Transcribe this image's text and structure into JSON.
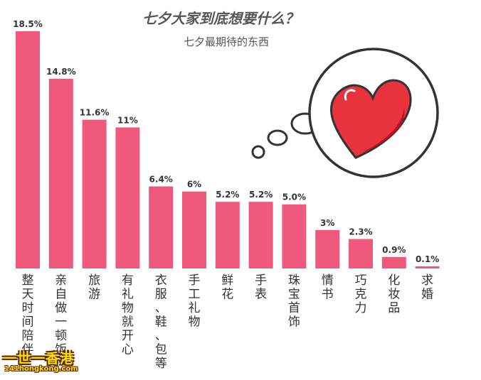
{
  "chart_data": {
    "type": "bar",
    "title": "七夕大家到底想要什么？",
    "subtitle": "七夕最期待的东西",
    "categories": [
      "整天时间陪伴",
      "亲自做一顿饭",
      "旅游",
      "有礼物就开心",
      "衣服、鞋、包等",
      "手工礼物",
      "鲜花",
      "手表",
      "珠宝首饰",
      "情书",
      "巧克力",
      "化妆品",
      "求婚"
    ],
    "values": [
      18.5,
      14.8,
      11.6,
      11,
      6.4,
      6,
      5.2,
      5.2,
      5.0,
      3,
      2.3,
      0.9,
      0.1
    ],
    "value_labels": [
      "18.5%",
      "14.8%",
      "11.6%",
      "11%",
      "6.4%",
      "6%",
      "5.2%",
      "5.2%",
      "5.0%",
      "3%",
      "2.3%",
      "0.9%",
      "0.1%"
    ],
    "ylim": [
      0,
      18.5
    ],
    "grid": false,
    "colors": {
      "bar": "#f0597e",
      "heart": "#e8333d",
      "heart_dark": "#b5122a",
      "text": "#333333",
      "title": "#555555"
    }
  },
  "watermark": {
    "main": "一世一香港",
    "sub": "141hongkong.com"
  }
}
